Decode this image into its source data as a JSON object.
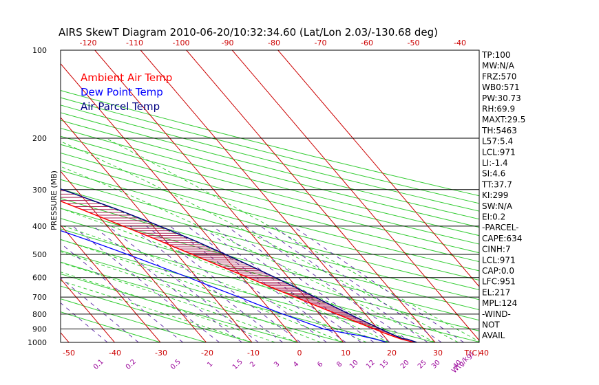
{
  "chart_data": {
    "type": "line",
    "title": "AIRS SkewT Diagram 2010-06-20/10:32:34.60 (Lat/Lon 2.03/-130.68 deg)",
    "ylabel": "PRESSURE (MB)",
    "xlabel": "T(C)",
    "mixing_ratio_unit_label": "W(g/kg)",
    "y_scale": "log",
    "ylim": [
      1000,
      100
    ],
    "pressure_ticks": [
      100,
      200,
      300,
      400,
      500,
      600,
      700,
      800,
      900,
      1000
    ],
    "temperature_ticks_top": [
      -120,
      -110,
      -100,
      -90,
      -80,
      -70,
      -60,
      -50,
      -40
    ],
    "temperature_ticks_bottom": [
      -50,
      -40,
      -30,
      -20,
      -10,
      0,
      10,
      20,
      30,
      40
    ],
    "mixing_ratio_ticks": [
      "0.1",
      "0.2",
      "0.5",
      "1",
      "1.5",
      "2",
      "3",
      "4",
      "6",
      "8",
      "10",
      "12",
      "15",
      "20",
      "25",
      "30",
      "40"
    ],
    "legend": [
      {
        "name": "Ambient Air Temp",
        "color": "#ff0000"
      },
      {
        "name": "Dew Point Temp",
        "color": "#0000ff"
      },
      {
        "name": "Air Parcel Temp",
        "color": "#000080"
      }
    ],
    "series": [
      {
        "name": "Ambient Air Temp",
        "color": "#ff0000",
        "points": [
          [
            1000,
            25.5
          ],
          [
            975,
            23.2
          ],
          [
            950,
            21.8
          ],
          [
            925,
            20.4
          ],
          [
            900,
            19.2
          ],
          [
            850,
            16.5
          ],
          [
            800,
            13.8
          ],
          [
            750,
            10.9
          ],
          [
            700,
            7.9
          ],
          [
            650,
            4.6
          ],
          [
            600,
            1.2
          ],
          [
            550,
            -2.6
          ],
          [
            500,
            -6.7
          ],
          [
            450,
            -11.2
          ],
          [
            400,
            -16.5
          ],
          [
            350,
            -22.6
          ],
          [
            300,
            -29.8
          ],
          [
            250,
            -38.6
          ],
          [
            200,
            -49.6
          ],
          [
            175,
            -55.2
          ],
          [
            150,
            -58.0
          ],
          [
            150,
            -84.0
          ],
          [
            125,
            -84.0
          ],
          [
            125,
            -84.0
          ],
          [
            100,
            -84.0
          ]
        ]
      },
      {
        "name": "Dew Point Temp",
        "color": "#0000ff",
        "points": [
          [
            1000,
            19.5
          ],
          [
            975,
            17.5
          ],
          [
            950,
            15.0
          ],
          [
            925,
            11.5
          ],
          [
            900,
            8.2
          ],
          [
            850,
            5.2
          ],
          [
            800,
            2.0
          ],
          [
            750,
            -1.2
          ],
          [
            700,
            -4.4
          ],
          [
            650,
            -8.0
          ],
          [
            600,
            -11.8
          ],
          [
            550,
            -16.0
          ],
          [
            500,
            -20.8
          ],
          [
            450,
            -26.4
          ],
          [
            400,
            -33.0
          ],
          [
            350,
            -41.0
          ],
          [
            300,
            -51.0
          ],
          [
            250,
            -63.0
          ],
          [
            200,
            -75.0
          ],
          [
            175,
            -80.5
          ],
          [
            150,
            -84.5
          ],
          [
            100,
            -92.0
          ]
        ]
      },
      {
        "name": "Air Parcel Temp",
        "color": "#000080",
        "points": [
          [
            1000,
            26.0
          ],
          [
            975,
            24.5
          ],
          [
            971,
            23.6
          ],
          [
            950,
            22.6
          ],
          [
            900,
            20.6
          ],
          [
            850,
            18.6
          ],
          [
            800,
            16.5
          ],
          [
            750,
            14.4
          ],
          [
            700,
            12.2
          ],
          [
            650,
            9.8
          ],
          [
            600,
            7.1
          ],
          [
            550,
            4.1
          ],
          [
            500,
            0.6
          ],
          [
            450,
            -3.5
          ],
          [
            400,
            -8.5
          ],
          [
            350,
            -14.8
          ],
          [
            300,
            -23.0
          ],
          [
            250,
            -34.0
          ],
          [
            217,
            -43.5
          ],
          [
            200,
            -49.0
          ],
          [
            175,
            -58.0
          ],
          [
            150,
            -68.0
          ],
          [
            125,
            -80.0
          ],
          [
            100,
            -95.0
          ]
        ]
      }
    ],
    "stats": [
      "TP:100",
      "MW:N/A",
      "FRZ:570",
      "WB0:571",
      "PW:30.73",
      "RH:69.9",
      "MAXT:29.5",
      "TH:5463",
      "L57:5.4",
      "LCL:971",
      "LI:-1.4",
      "SI:4.6",
      "TT:37.7",
      "KI:299",
      "SW:N/A",
      "EI:0.2",
      "-PARCEL-",
      "CAPE:634",
      "CINH:7",
      "LCL:971",
      "CAP:0.0",
      "LFC:951",
      "EL:217",
      "MPL:124",
      "-WIND-",
      "NOT",
      "AVAIL"
    ],
    "grid": true,
    "legend_position": "top-left"
  }
}
